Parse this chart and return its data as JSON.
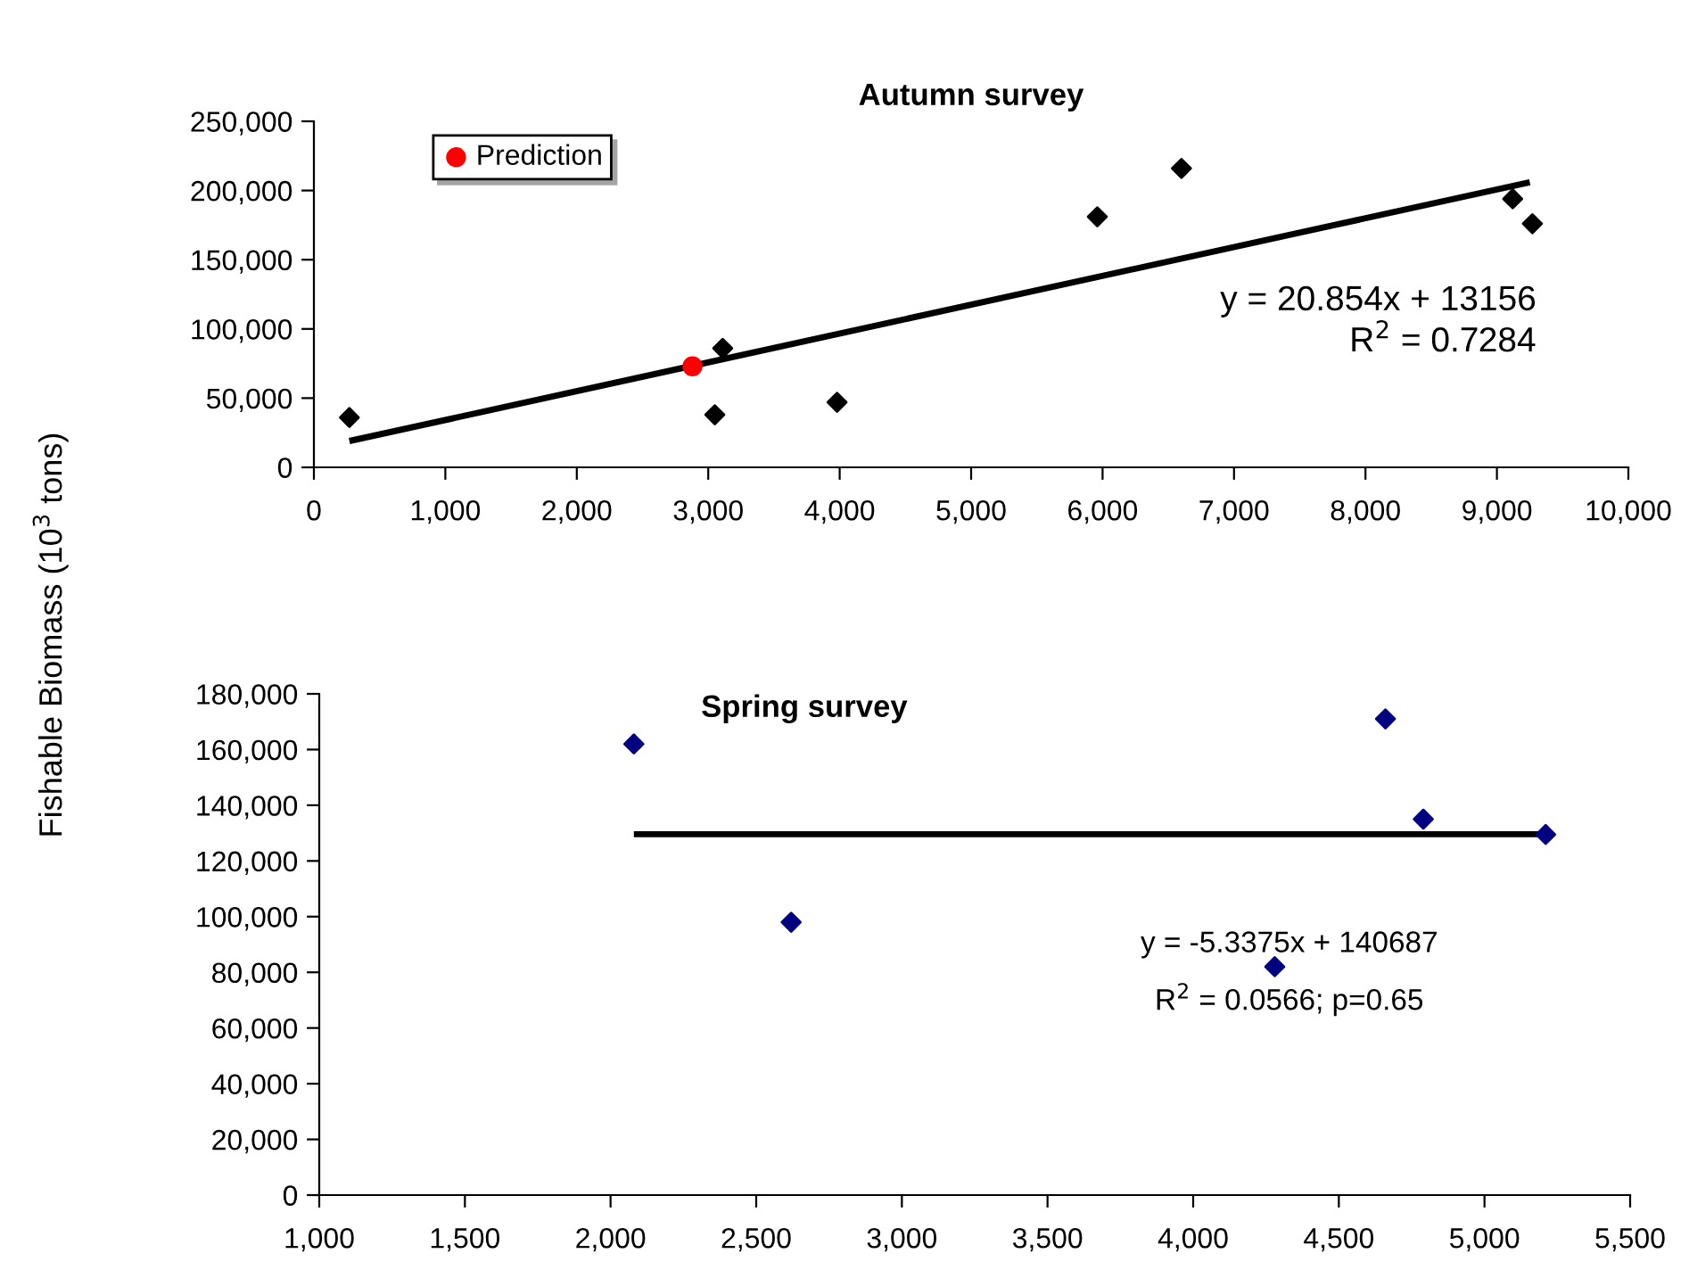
{
  "chart_data": [
    {
      "type": "scatter",
      "title": "Autumn survey",
      "ylabel": "Fishable Biomass (10$^{3}$ tons)",
      "xlim": [
        0,
        10000
      ],
      "xticks": [
        {
          "value": 0,
          "label": "0"
        },
        {
          "value": 1000,
          "label": "1,000"
        },
        {
          "value": 2000,
          "label": "2,000"
        },
        {
          "value": 3000,
          "label": "3,000"
        },
        {
          "value": 4000,
          "label": "4,000"
        },
        {
          "value": 5000,
          "label": "5,000"
        },
        {
          "value": 6000,
          "label": "6,000"
        },
        {
          "value": 7000,
          "label": "7,000"
        },
        {
          "value": 8000,
          "label": "8,000"
        },
        {
          "value": 9000,
          "label": "9,000"
        },
        {
          "value": 10000,
          "label": "10,000"
        }
      ],
      "ylim": [
        0,
        250000
      ],
      "yticks": [
        {
          "value": 0,
          "label": "0"
        },
        {
          "value": 50000,
          "label": "50,000"
        },
        {
          "value": 100000,
          "label": "100,000"
        },
        {
          "value": 150000,
          "label": "150,000"
        },
        {
          "value": 200000,
          "label": "200,000"
        },
        {
          "value": 250000,
          "label": "250,000"
        }
      ],
      "grid": false,
      "legend": "top left",
      "series": [
        {
          "marker": "diamond",
          "color": "#000000",
          "x": [
            270,
            3050,
            3110,
            3980,
            5960,
            6600,
            9120,
            9270
          ],
          "values": [
            36000,
            38000,
            86000,
            47000,
            181000,
            216000,
            194000,
            176000
          ]
        },
        {
          "type": "line",
          "marker": "none",
          "color": "#000000",
          "x": [
            270,
            9250
          ],
          "values": [
            19000,
            206000
          ]
        },
        {
          "marker": "circle",
          "name": "Prediction",
          "color": "#ff0000",
          "x": [
            2880
          ],
          "values": [
            73000
          ]
        }
      ],
      "annotations": [
        "y = 20.854x + 13156",
        "R$^{2}$ = 0.7284"
      ]
    },
    {
      "type": "scatter",
      "title": "Spring survey",
      "xlim": [
        1000,
        5500
      ],
      "xticks": [
        {
          "value": 1000,
          "label": "1,000"
        },
        {
          "value": 1500,
          "label": "1,500"
        },
        {
          "value": 2000,
          "label": "2,000"
        },
        {
          "value": 2500,
          "label": "2,500"
        },
        {
          "value": 3000,
          "label": "3,000"
        },
        {
          "value": 3500,
          "label": "3,500"
        },
        {
          "value": 4000,
          "label": "4,000"
        },
        {
          "value": 4500,
          "label": "4,500"
        },
        {
          "value": 5000,
          "label": "5,000"
        },
        {
          "value": 5500,
          "label": "5,500"
        }
      ],
      "ylim": [
        0,
        180000
      ],
      "yticks": [
        {
          "value": 0,
          "label": "0"
        },
        {
          "value": 20000,
          "label": "20,000"
        },
        {
          "value": 40000,
          "label": "40,000"
        },
        {
          "value": 60000,
          "label": "60,000"
        },
        {
          "value": 80000,
          "label": "80,000"
        },
        {
          "value": 100000,
          "label": "100,000"
        },
        {
          "value": 120000,
          "label": "120,000"
        },
        {
          "value": 140000,
          "label": "140,000"
        },
        {
          "value": 160000,
          "label": "160,000"
        },
        {
          "value": 180000,
          "label": "180,000"
        }
      ],
      "grid": false,
      "series": [
        {
          "marker": "diamond",
          "color": "#000080",
          "x": [
            2080,
            2620,
            4280,
            4660,
            4790,
            5210
          ],
          "values": [
            162000,
            98000,
            82000,
            171000,
            135000,
            129500
          ]
        },
        {
          "type": "line",
          "marker": "none",
          "color": "#000000",
          "x": [
            2080,
            5210
          ],
          "values": [
            129600,
            129600
          ]
        }
      ],
      "annotations": [
        "y = -5.3375x + 140687",
        "R$^{2}$ = 0.0566; p=0.65"
      ]
    }
  ]
}
